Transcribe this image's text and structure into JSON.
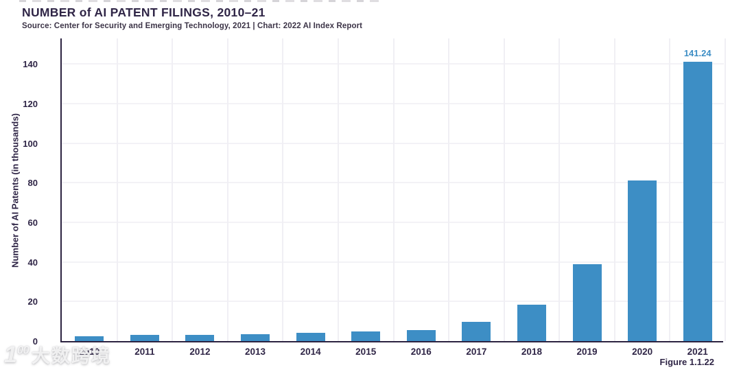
{
  "header": {
    "title": "NUMBER of AI PATENT FILINGS, 2010–21",
    "source": "Source: Center for Security and Emerging Technology, 2021 | Chart: 2022 AI Index Report"
  },
  "chart_data": {
    "type": "bar",
    "title": "NUMBER of AI PATENT FILINGS, 2010–21",
    "xlabel": "",
    "ylabel": "Number of AI Patents (in thousands)",
    "categories": [
      "2010",
      "2011",
      "2012",
      "2013",
      "2014",
      "2015",
      "2016",
      "2017",
      "2018",
      "2019",
      "2020",
      "2021"
    ],
    "values": [
      2.6,
      3.0,
      3.2,
      3.6,
      4.2,
      4.7,
      5.5,
      9.7,
      18.3,
      39.0,
      81.2,
      141.24
    ],
    "yticks": [
      0,
      20,
      40,
      60,
      80,
      100,
      120,
      140
    ],
    "ylim": [
      0,
      153
    ],
    "grid": true,
    "legend": "none",
    "bar_color": "#3d8ec5",
    "annotated_point": {
      "category": "2021",
      "label": "141.24"
    }
  },
  "footer": {
    "figure_label": "Figure 1.1.22"
  },
  "watermark": {
    "logo_number": "1",
    "logo_sup": "00",
    "text": "大数跨境"
  },
  "colors": {
    "bar": "#3d8ec5",
    "axis": "#2b2240",
    "text": "#2f2546",
    "gridline": "#f3f2f6",
    "value_label": "#3d8ec5"
  }
}
